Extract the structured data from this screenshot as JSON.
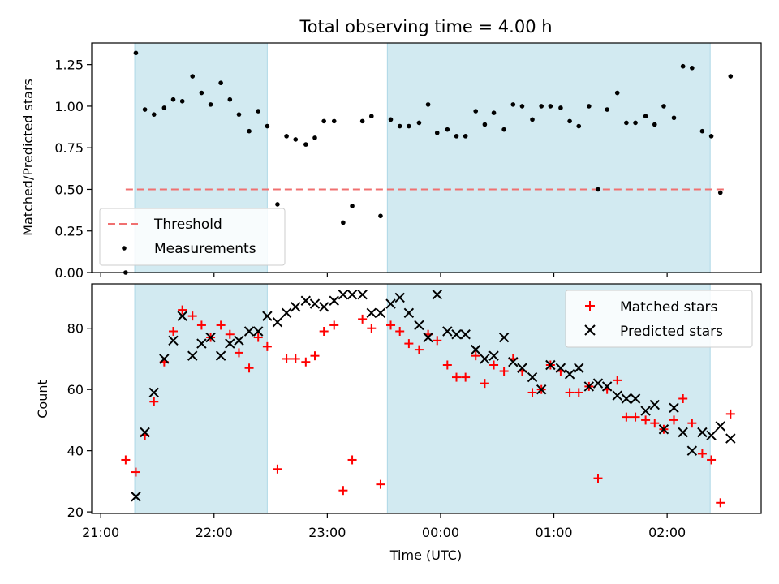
{
  "chart_data": {
    "type": "scatter",
    "title": "Total observing time = 4.00 h",
    "xlabel": "Time (UTC)",
    "x_ticks": [
      "21:00",
      "22:00",
      "23:00",
      "00:00",
      "01:00",
      "02:00"
    ],
    "x_unit": "hours_since_21:00",
    "x_range": [
      -0.08,
      5.83
    ],
    "shaded_intervals": [
      [
        0.3,
        1.47
      ],
      [
        2.53,
        5.38
      ]
    ],
    "shade_color": "#add8e6",
    "top_panel": {
      "ylabel": "Matched/Predicted stars",
      "ylim": [
        0,
        1.38
      ],
      "yticks": [
        "0.00",
        "0.25",
        "0.50",
        "0.75",
        "1.00",
        "1.25"
      ],
      "threshold": {
        "name": "Threshold",
        "value": 0.5,
        "x_range": [
          0.22,
          5.5
        ],
        "color": "#f07070"
      },
      "series": [
        {
          "name": "Measurements",
          "color": "#000000",
          "points": [
            [
              0.22,
              0.0
            ],
            [
              0.31,
              1.32
            ],
            [
              0.39,
              0.98
            ],
            [
              0.47,
              0.95
            ],
            [
              0.56,
              0.99
            ],
            [
              0.64,
              1.04
            ],
            [
              0.72,
              1.03
            ],
            [
              0.81,
              1.18
            ],
            [
              0.89,
              1.08
            ],
            [
              0.97,
              1.01
            ],
            [
              1.06,
              1.14
            ],
            [
              1.14,
              1.04
            ],
            [
              1.22,
              0.95
            ],
            [
              1.31,
              0.85
            ],
            [
              1.39,
              0.97
            ],
            [
              1.47,
              0.88
            ],
            [
              1.56,
              0.41
            ],
            [
              1.64,
              0.82
            ],
            [
              1.72,
              0.8
            ],
            [
              1.81,
              0.77
            ],
            [
              1.89,
              0.81
            ],
            [
              1.97,
              0.91
            ],
            [
              2.06,
              0.91
            ],
            [
              2.14,
              0.3
            ],
            [
              2.22,
              0.4
            ],
            [
              2.31,
              0.91
            ],
            [
              2.39,
              0.94
            ],
            [
              2.47,
              0.34
            ],
            [
              2.56,
              0.92
            ],
            [
              2.64,
              0.88
            ],
            [
              2.72,
              0.88
            ],
            [
              2.81,
              0.9
            ],
            [
              2.89,
              1.01
            ],
            [
              2.97,
              0.84
            ],
            [
              3.06,
              0.86
            ],
            [
              3.14,
              0.82
            ],
            [
              3.22,
              0.82
            ],
            [
              3.31,
              0.97
            ],
            [
              3.39,
              0.89
            ],
            [
              3.47,
              0.96
            ],
            [
              3.56,
              0.86
            ],
            [
              3.64,
              1.01
            ],
            [
              3.72,
              1.0
            ],
            [
              3.81,
              0.92
            ],
            [
              3.89,
              1.0
            ],
            [
              3.97,
              1.0
            ],
            [
              4.06,
              0.99
            ],
            [
              4.14,
              0.91
            ],
            [
              4.22,
              0.88
            ],
            [
              4.31,
              1.0
            ],
            [
              4.39,
              0.5
            ],
            [
              4.47,
              0.98
            ],
            [
              4.56,
              1.08
            ],
            [
              4.64,
              0.9
            ],
            [
              4.72,
              0.9
            ],
            [
              4.81,
              0.94
            ],
            [
              4.89,
              0.89
            ],
            [
              4.97,
              1.0
            ],
            [
              5.06,
              0.93
            ],
            [
              5.14,
              1.24
            ],
            [
              5.22,
              1.23
            ],
            [
              5.31,
              0.85
            ],
            [
              5.39,
              0.82
            ],
            [
              5.47,
              0.48
            ],
            [
              5.56,
              1.18
            ]
          ]
        }
      ],
      "legend": {
        "placement": "lower-left",
        "entries": [
          "Threshold",
          "Measurements"
        ]
      }
    },
    "bottom_panel": {
      "ylabel": "Count",
      "ylim": [
        19.5,
        94.5
      ],
      "yticks": [
        "20",
        "40",
        "60",
        "80"
      ],
      "series": [
        {
          "name": "Matched stars",
          "color": "#ff0000",
          "marker": "+",
          "points": [
            [
              0.22,
              37
            ],
            [
              0.31,
              33
            ],
            [
              0.39,
              45
            ],
            [
              0.47,
              56
            ],
            [
              0.56,
              69
            ],
            [
              0.64,
              79
            ],
            [
              0.72,
              86
            ],
            [
              0.81,
              84
            ],
            [
              0.89,
              81
            ],
            [
              0.97,
              77
            ],
            [
              1.06,
              81
            ],
            [
              1.14,
              78
            ],
            [
              1.22,
              72
            ],
            [
              1.31,
              67
            ],
            [
              1.39,
              77
            ],
            [
              1.47,
              74
            ],
            [
              1.56,
              34
            ],
            [
              1.64,
              70
            ],
            [
              1.72,
              70
            ],
            [
              1.81,
              69
            ],
            [
              1.89,
              71
            ],
            [
              1.97,
              79
            ],
            [
              2.06,
              81
            ],
            [
              2.14,
              27
            ],
            [
              2.22,
              37
            ],
            [
              2.31,
              83
            ],
            [
              2.39,
              80
            ],
            [
              2.47,
              29
            ],
            [
              2.56,
              81
            ],
            [
              2.64,
              79
            ],
            [
              2.72,
              75
            ],
            [
              2.81,
              73
            ],
            [
              2.89,
              78
            ],
            [
              2.97,
              76
            ],
            [
              3.06,
              68
            ],
            [
              3.14,
              64
            ],
            [
              3.22,
              64
            ],
            [
              3.31,
              71
            ],
            [
              3.39,
              62
            ],
            [
              3.47,
              68
            ],
            [
              3.56,
              66
            ],
            [
              3.64,
              70
            ],
            [
              3.72,
              66
            ],
            [
              3.81,
              59
            ],
            [
              3.89,
              60
            ],
            [
              3.97,
              68
            ],
            [
              4.06,
              66
            ],
            [
              4.14,
              59
            ],
            [
              4.22,
              59
            ],
            [
              4.31,
              61
            ],
            [
              4.39,
              31
            ],
            [
              4.47,
              60
            ],
            [
              4.56,
              63
            ],
            [
              4.64,
              51
            ],
            [
              4.72,
              51
            ],
            [
              4.81,
              50
            ],
            [
              4.89,
              49
            ],
            [
              4.97,
              47
            ],
            [
              5.06,
              50
            ],
            [
              5.14,
              57
            ],
            [
              5.22,
              49
            ],
            [
              5.31,
              39
            ],
            [
              5.39,
              37
            ],
            [
              5.47,
              23
            ],
            [
              5.56,
              52
            ]
          ]
        },
        {
          "name": "Predicted stars",
          "color": "#000000",
          "marker": "x",
          "points": [
            [
              0.31,
              25
            ],
            [
              0.39,
              46
            ],
            [
              0.47,
              59
            ],
            [
              0.56,
              70
            ],
            [
              0.64,
              76
            ],
            [
              0.72,
              84
            ],
            [
              0.81,
              71
            ],
            [
              0.89,
              75
            ],
            [
              0.97,
              77
            ],
            [
              1.06,
              71
            ],
            [
              1.14,
              75
            ],
            [
              1.22,
              76
            ],
            [
              1.31,
              79
            ],
            [
              1.39,
              79
            ],
            [
              1.47,
              84
            ],
            [
              1.56,
              82
            ],
            [
              1.64,
              85
            ],
            [
              1.72,
              87
            ],
            [
              1.81,
              89
            ],
            [
              1.89,
              88
            ],
            [
              1.97,
              87
            ],
            [
              2.06,
              89
            ],
            [
              2.14,
              91
            ],
            [
              2.22,
              91
            ],
            [
              2.31,
              91
            ],
            [
              2.39,
              85
            ],
            [
              2.47,
              85
            ],
            [
              2.56,
              88
            ],
            [
              2.64,
              90
            ],
            [
              2.72,
              85
            ],
            [
              2.81,
              81
            ],
            [
              2.89,
              77
            ],
            [
              2.97,
              91
            ],
            [
              3.06,
              79
            ],
            [
              3.14,
              78
            ],
            [
              3.22,
              78
            ],
            [
              3.31,
              73
            ],
            [
              3.39,
              70
            ],
            [
              3.47,
              71
            ],
            [
              3.56,
              77
            ],
            [
              3.64,
              69
            ],
            [
              3.72,
              67
            ],
            [
              3.81,
              64
            ],
            [
              3.89,
              60
            ],
            [
              3.97,
              68
            ],
            [
              4.06,
              67
            ],
            [
              4.14,
              65
            ],
            [
              4.22,
              67
            ],
            [
              4.31,
              61
            ],
            [
              4.39,
              62
            ],
            [
              4.47,
              61
            ],
            [
              4.56,
              58
            ],
            [
              4.64,
              57
            ],
            [
              4.72,
              57
            ],
            [
              4.81,
              53
            ],
            [
              4.89,
              55
            ],
            [
              4.97,
              47
            ],
            [
              5.06,
              54
            ],
            [
              5.14,
              46
            ],
            [
              5.22,
              40
            ],
            [
              5.31,
              46
            ],
            [
              5.39,
              45
            ],
            [
              5.47,
              48
            ],
            [
              5.56,
              44
            ]
          ]
        }
      ],
      "legend": {
        "placement": "upper-right",
        "entries": [
          "Matched stars",
          "Predicted stars"
        ]
      }
    }
  }
}
